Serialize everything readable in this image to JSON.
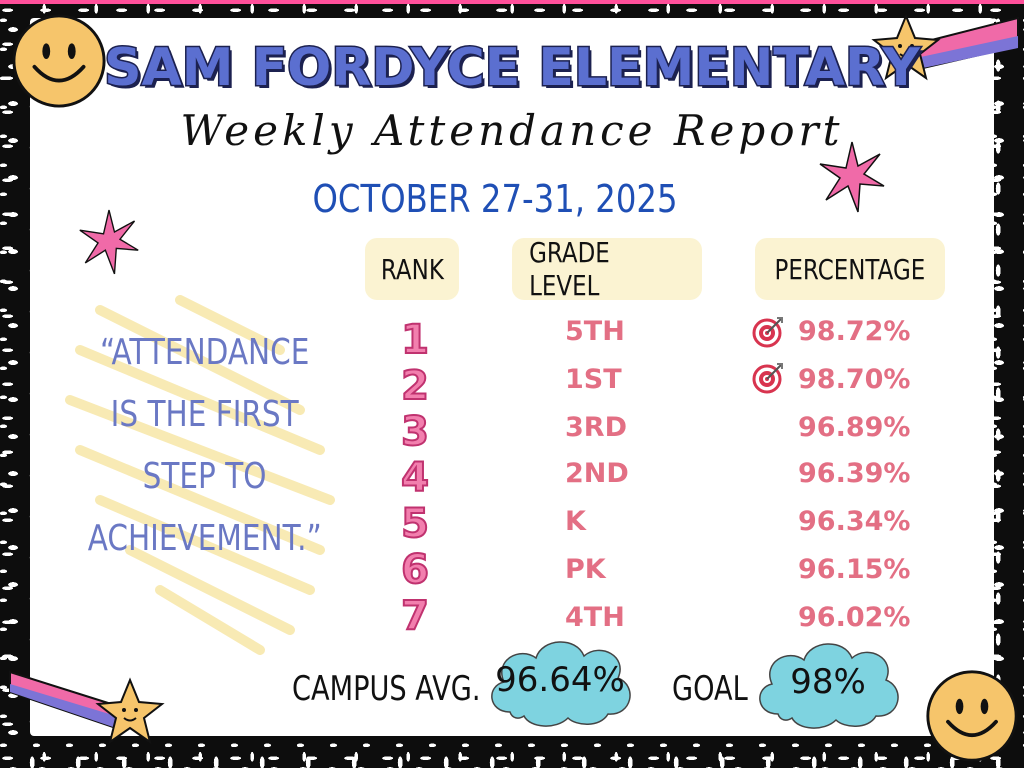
{
  "header": {
    "school": "SAM FORDYCE ELEMENTARY",
    "subtitle": "Weekly Attendance Report",
    "dates": "OCTOBER 27-31, 2025"
  },
  "table": {
    "columns": [
      "RANK",
      "GRADE LEVEL",
      "PERCENTAGE"
    ],
    "rows": [
      {
        "rank": "1",
        "grade": "5TH",
        "percentage": "98.72%",
        "met_goal": true
      },
      {
        "rank": "2",
        "grade": "1ST",
        "percentage": "98.70%",
        "met_goal": true
      },
      {
        "rank": "3",
        "grade": "3RD",
        "percentage": "96.89%",
        "met_goal": false
      },
      {
        "rank": "4",
        "grade": "2ND",
        "percentage": "96.39%",
        "met_goal": false
      },
      {
        "rank": "5",
        "grade": "K",
        "percentage": "96.34%",
        "met_goal": false
      },
      {
        "rank": "6",
        "grade": "PK",
        "percentage": "96.15%",
        "met_goal": false
      },
      {
        "rank": "7",
        "grade": "4TH",
        "percentage": "96.02%",
        "met_goal": false
      }
    ]
  },
  "quote": {
    "lines": [
      "“ATTENDANCE",
      "IS THE FIRST",
      "STEP TO",
      "ACHIEVEMENT.”"
    ]
  },
  "footer": {
    "campus_avg_label": "CAMPUS AVG.",
    "campus_avg_value": "96.64%",
    "goal_label": "GOAL",
    "goal_value": "98%"
  },
  "icons": [
    "smiley-face-icon",
    "shooting-star-icon",
    "sparkle-star-icon",
    "target-icon"
  ],
  "colors": {
    "title_blue": "#5b6fd0",
    "date_blue": "#1f4fb5",
    "rank_pink": "#f27fae",
    "value_pink": "#e36f84",
    "quote_blue": "#6a78c4",
    "cloud_blue": "#7ed3e0",
    "header_cream": "#fbf3d2"
  }
}
